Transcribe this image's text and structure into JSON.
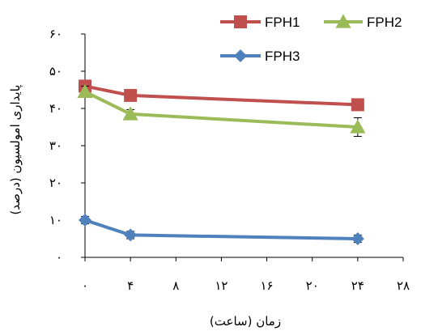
{
  "chart_data": {
    "type": "line",
    "xlabel": "زمان (ساعت)",
    "ylabel": "پایداری امولسیون (درصد)",
    "xlim": [
      0,
      28
    ],
    "ylim": [
      0,
      60
    ],
    "x_ticks": [
      0,
      4,
      8,
      12,
      16,
      20,
      24,
      28
    ],
    "x_tick_labels": [
      "۰",
      "۴",
      "۸",
      "۱۲",
      "۱۶",
      "۲۰",
      "۲۴",
      "۲۸"
    ],
    "y_ticks": [
      0,
      10,
      20,
      30,
      40,
      50,
      60
    ],
    "y_tick_labels": [
      "۰",
      "۱۰",
      "۲۰",
      "۳۰",
      "۴۰",
      "۵۰",
      "۶۰"
    ],
    "grid": false,
    "legend_position": "top-right",
    "series": [
      {
        "name": "FPH1",
        "color": "#c0504d",
        "marker": "square",
        "x": [
          0,
          4,
          24
        ],
        "y": [
          46,
          43.5,
          41
        ],
        "error": [
          1,
          0.8,
          0.8
        ]
      },
      {
        "name": "FPH2",
        "color": "#9bbb59",
        "marker": "triangle",
        "x": [
          0,
          4,
          24
        ],
        "y": [
          44.5,
          38.5,
          35
        ],
        "error": [
          1.5,
          1.2,
          2.5
        ]
      },
      {
        "name": "FPH3",
        "color": "#4f81bd",
        "marker": "diamond",
        "x": [
          0,
          4,
          24
        ],
        "y": [
          10,
          6,
          5
        ],
        "error": [
          1,
          1,
          1
        ]
      }
    ]
  }
}
